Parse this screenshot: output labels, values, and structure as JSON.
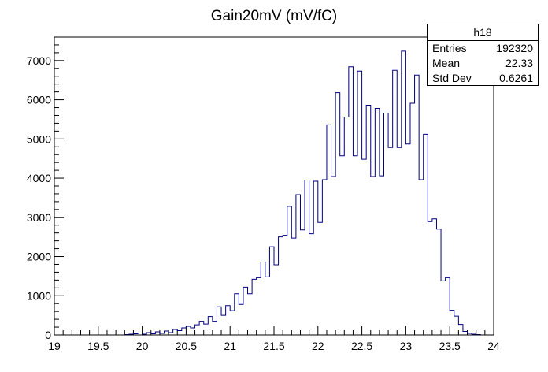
{
  "chart_data": {
    "type": "histogram",
    "title": "Gain20mV (mV/fC)",
    "xlim": [
      19,
      24
    ],
    "ylim": [
      0,
      7600
    ],
    "bin_width": 0.05,
    "x_ticks": [
      "19",
      "19.5",
      "20",
      "20.5",
      "21",
      "21.5",
      "22",
      "22.5",
      "23",
      "23.5",
      "24"
    ],
    "y_ticks": [
      "0",
      "1000",
      "2000",
      "3000",
      "4000",
      "5000",
      "6000",
      "7000"
    ],
    "series": [
      {
        "bins_start": 19.8,
        "values": [
          10,
          20,
          30,
          50,
          20,
          60,
          30,
          80,
          40,
          100,
          60,
          140,
          110,
          180,
          220,
          180,
          260,
          350,
          280,
          470,
          350,
          720,
          500,
          750,
          620,
          1050,
          780,
          1220,
          1050,
          1420,
          1460,
          1860,
          1480,
          2250,
          1790,
          2500,
          2540,
          3280,
          2470,
          3580,
          2680,
          3950,
          2580,
          3920,
          2870,
          3960,
          5360,
          4040,
          6180,
          4570,
          5560,
          6840,
          4570,
          6730,
          4480,
          5860,
          4040,
          5780,
          4060,
          5660,
          4780,
          6750,
          4780,
          7240,
          4870,
          5910,
          6630,
          3960,
          5120,
          2890,
          2960,
          2700,
          1380,
          1460,
          630,
          480,
          270,
          90,
          40,
          20,
          10
        ]
      }
    ]
  },
  "stats": {
    "name": "h18",
    "entries_label": "Entries",
    "entries": "192320",
    "mean_label": "Mean",
    "mean": "22.33",
    "std_label": "Std Dev",
    "std": "0.6261"
  }
}
